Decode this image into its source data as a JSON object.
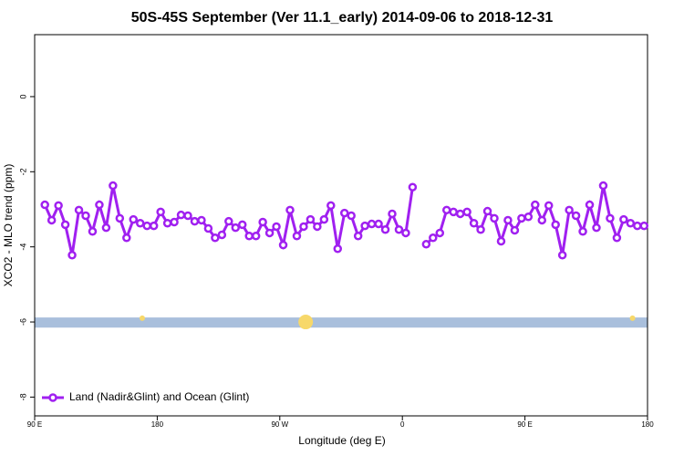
{
  "chart_data": {
    "type": "line",
    "title": "50S-45S September (Ver 11.1_early)   2014-09-06 to 2018-12-31",
    "x_label": "Longitude (deg E)",
    "y_label": "XCO2 - MLO trend (ppm)",
    "xlim": [
      90,
      540
    ],
    "xticks": [
      {
        "value": 90,
        "label": "90 E"
      },
      {
        "value": 180,
        "label": "180"
      },
      {
        "value": 270,
        "label": "90 W"
      },
      {
        "value": 360,
        "label": "0"
      },
      {
        "value": 450,
        "label": "90 E"
      },
      {
        "value": 540,
        "label": "180"
      }
    ],
    "ylim": [
      -8.5,
      1.65
    ],
    "yticks": [
      0,
      -2,
      -4,
      -6,
      -8
    ],
    "legend": "bottom-left",
    "band": {
      "y": [
        -6.15,
        -5.88
      ],
      "color": "#a9bfdc"
    },
    "highlights": {
      "x": [
        169,
        289,
        529
      ],
      "y": [
        -5.9,
        -6.0,
        -5.9
      ],
      "sizes": [
        3,
        8,
        3
      ],
      "color": "#f7d86a"
    },
    "x": [
      97.5,
      102.5,
      107.5,
      112.5,
      117.5,
      122.5,
      127.5,
      132.5,
      137.5,
      142.5,
      147.5,
      152.5,
      157.5,
      162.5,
      167.5,
      172.5,
      177.5,
      182.5,
      187.5,
      192.5,
      197.5,
      202.5,
      207.5,
      212.5,
      217.5,
      222.5,
      227.5,
      232.5,
      237.5,
      242.5,
      247.5,
      252.5,
      257.5,
      262.5,
      267.5,
      272.5,
      277.5,
      282.5,
      287.5,
      292.5,
      297.5,
      302.5,
      307.5,
      312.5,
      317.5,
      322.5,
      327.5,
      332.5,
      337.5,
      342.5,
      347.5,
      352.5,
      357.5,
      362.5,
      367.5,
      372.5,
      377.5,
      382.5,
      387.5,
      392.5,
      397.5,
      402.5,
      407.5,
      412.5,
      417.5,
      422.5,
      427.5,
      432.5,
      437.5,
      442.5,
      447.5,
      452.5,
      457.5,
      462.5,
      467.5,
      472.5,
      477.5,
      482.5,
      487.5,
      492.5,
      497.5,
      502.5,
      507.5,
      512.5,
      517.5,
      522.5,
      527.5,
      532.5,
      537.5
    ],
    "series": [
      {
        "name": "Land (Nadir&Glint) and Ocean (Glint)",
        "color": "#a020f0",
        "values": [
          -2.88,
          -3.29,
          -2.9,
          -3.41,
          -4.22,
          -3.02,
          -3.17,
          -3.59,
          -2.88,
          -3.49,
          -2.37,
          -3.24,
          -3.76,
          -3.27,
          -3.37,
          -3.44,
          -3.44,
          -3.07,
          -3.37,
          -3.34,
          -3.15,
          -3.17,
          -3.32,
          -3.29,
          -3.51,
          -3.76,
          -3.68,
          -3.32,
          -3.49,
          -3.41,
          -3.71,
          -3.71,
          -3.34,
          -3.63,
          -3.46,
          -3.95,
          -3.02,
          -3.71,
          -3.46,
          -3.27,
          -3.46,
          -3.27,
          -2.9,
          -4.05,
          -3.1,
          -3.17,
          -3.71,
          -3.44,
          -3.39,
          -3.39,
          -3.54,
          -3.12,
          -3.54,
          -3.63,
          -2.41,
          null,
          -3.93,
          -3.76,
          -3.63,
          -3.02,
          -3.07,
          -3.12,
          -3.07,
          -3.37,
          -3.54,
          -3.05,
          -3.24,
          -3.85,
          -3.29,
          -3.56,
          -3.24,
          -3.2,
          -2.88,
          -3.29,
          -2.9,
          -3.41,
          -4.22,
          -3.02,
          -3.17,
          -3.59,
          -2.88,
          -3.49,
          -2.37,
          -3.24,
          -3.76,
          -3.27,
          -3.37,
          -3.44,
          -3.44
        ]
      }
    ]
  }
}
